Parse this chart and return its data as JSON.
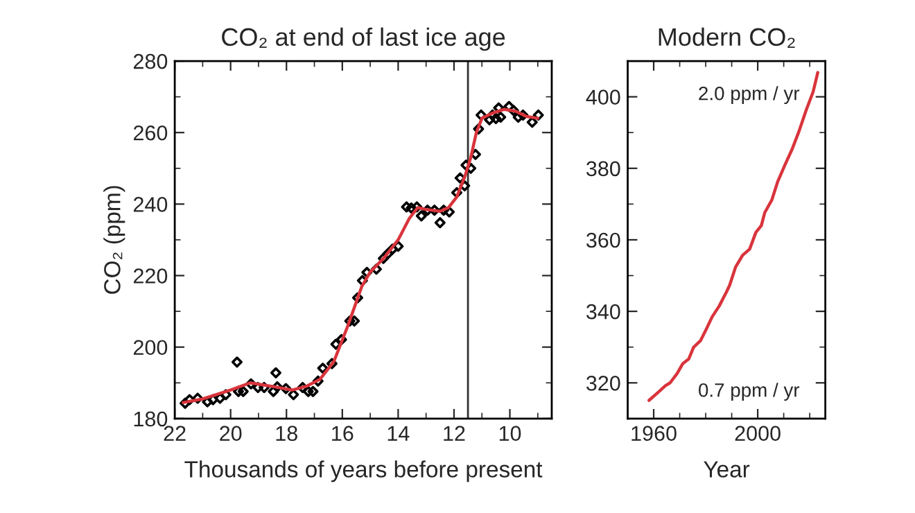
{
  "chart_data": [
    {
      "type": "scatter",
      "title": "CO₂ at end of last ice age",
      "xlabel": "Thousands of years before present",
      "ylabel": "CO₂ (ppm)",
      "xlim": [
        22,
        8.5
      ],
      "ylim": [
        180,
        280
      ],
      "xticks": [
        22,
        {
          "value": 21,
          "label": null
        },
        20,
        {
          "value": 19,
          "label": null
        },
        18,
        {
          "value": 17,
          "label": null
        },
        16,
        {
          "value": 15,
          "label": null
        },
        14,
        {
          "value": 13,
          "label": null
        },
        12,
        {
          "value": 11,
          "label": null
        },
        10,
        {
          "value": 9,
          "label": null
        }
      ],
      "yticks": [
        180,
        {
          "value": 190,
          "label": null
        },
        200,
        {
          "value": 210,
          "label": null
        },
        220,
        {
          "value": 230,
          "label": null
        },
        240,
        {
          "value": 250,
          "label": null
        },
        260,
        {
          "value": 270,
          "label": null
        },
        280
      ],
      "grid": false,
      "legend": false,
      "ref_lines": [
        {
          "axis": "x",
          "value": 11.5,
          "color": "#333333"
        }
      ],
      "series": [
        {
          "marker": "diamond",
          "color": "#000000",
          "x": [
            21.63,
            21.47,
            21.18,
            20.83,
            20.63,
            20.38,
            20.17,
            19.77,
            19.72,
            19.55,
            19.27,
            19.02,
            18.8,
            18.47,
            18.38,
            18.33,
            18.02,
            17.75,
            17.42,
            17.22,
            17.05,
            16.87,
            16.7,
            16.37,
            16.23,
            16.03,
            15.73,
            15.57,
            15.45,
            15.28,
            15.12,
            14.78,
            14.53,
            14.37,
            14.2,
            14.0,
            13.7,
            13.53,
            13.33,
            13.17,
            12.95,
            12.7,
            12.5,
            12.37,
            12.17,
            11.9,
            11.78,
            11.62,
            11.57,
            11.4,
            11.23,
            11.12,
            11.03,
            10.73,
            10.62,
            10.5,
            10.4,
            10.33,
            10.03,
            9.87,
            9.7,
            9.53,
            9.2,
            8.98
          ],
          "values": [
            184.3,
            185.3,
            185.7,
            184.7,
            185.3,
            185.7,
            186.7,
            195.8,
            187.6,
            187.6,
            189.7,
            188.7,
            188.7,
            187.6,
            192.8,
            188.9,
            188.4,
            186.7,
            188.7,
            187.6,
            187.6,
            190.5,
            194.1,
            195.4,
            200.8,
            202.1,
            207.3,
            207.3,
            213.8,
            218.6,
            220.9,
            221.8,
            224.8,
            226.1,
            227.4,
            228.2,
            239.2,
            238.9,
            239.2,
            236.7,
            238.3,
            238.3,
            234.8,
            238.3,
            237.8,
            243.2,
            247.3,
            245.1,
            250.9,
            250.0,
            253.9,
            261.0,
            264.9,
            263.6,
            264.9,
            263.9,
            266.9,
            264.3,
            267.3,
            266.2,
            264.3,
            264.9,
            262.9,
            264.9
          ]
        },
        {
          "type": "line",
          "marker": "none",
          "color": "#d9343c",
          "x": [
            21.7,
            21.0,
            20.0,
            19.3,
            18.5,
            17.8,
            17.3,
            16.8,
            16.3,
            15.8,
            15.3,
            15.0,
            14.5,
            14.0,
            13.6,
            13.3,
            13.0,
            12.5,
            12.2,
            11.9,
            11.6,
            11.4,
            11.2,
            11.0,
            10.6,
            10.2,
            9.8,
            9.4,
            9.0
          ],
          "values": [
            184.5,
            185.5,
            188,
            190,
            189,
            188,
            189,
            191,
            196,
            206,
            217,
            221,
            225,
            230,
            236,
            239,
            238.5,
            238,
            239,
            242,
            248,
            253,
            260,
            264,
            265.5,
            266.5,
            266,
            264.5,
            264
          ]
        }
      ]
    },
    {
      "type": "line",
      "title": "Modern CO₂",
      "xlabel": "Year",
      "xlim": [
        1950,
        2026
      ],
      "ylim": [
        310,
        410
      ],
      "xticks": [
        {
          "value": 1950,
          "label": null
        },
        1960,
        {
          "value": 1970,
          "label": null
        },
        {
          "value": 1980,
          "label": null
        },
        {
          "value": 1990,
          "label": null
        },
        2000,
        {
          "value": 2010,
          "label": null
        },
        {
          "value": 2020,
          "label": null
        }
      ],
      "yticks": [
        320,
        {
          "value": 330,
          "label": null
        },
        340,
        {
          "value": 350,
          "label": null
        },
        360,
        {
          "value": 370,
          "label": null
        },
        380,
        {
          "value": 390,
          "label": null
        },
        400
      ],
      "grid": false,
      "legend": false,
      "annotations": [
        "2.0 ppm / yr",
        "0.7 ppm / yr"
      ],
      "series": [
        {
          "marker": "none",
          "color": "#d9343c",
          "x": [
            1958.2,
            1961.8,
            1964.5,
            1966.3,
            1969.0,
            1971.2,
            1973.5,
            1975.3,
            1978.0,
            1980.2,
            1982.5,
            1985.2,
            1987.9,
            1989.2,
            1991.5,
            1994.2,
            1996.9,
            1999.3,
            2001.4,
            2002.7,
            2005.4,
            2007.7,
            2010.5,
            2013.2,
            2015.9,
            2018.6,
            2021.3,
            2023.1
          ],
          "values": [
            315.1,
            317.4,
            319.2,
            320.0,
            322.6,
            325.4,
            326.7,
            329.9,
            331.8,
            335.0,
            338.5,
            341.5,
            345.3,
            347.3,
            352.4,
            355.7,
            357.4,
            362.1,
            364.0,
            367.6,
            371.1,
            376.3,
            381.0,
            385.3,
            390.4,
            396.2,
            401.4,
            406.8
          ]
        }
      ]
    }
  ]
}
